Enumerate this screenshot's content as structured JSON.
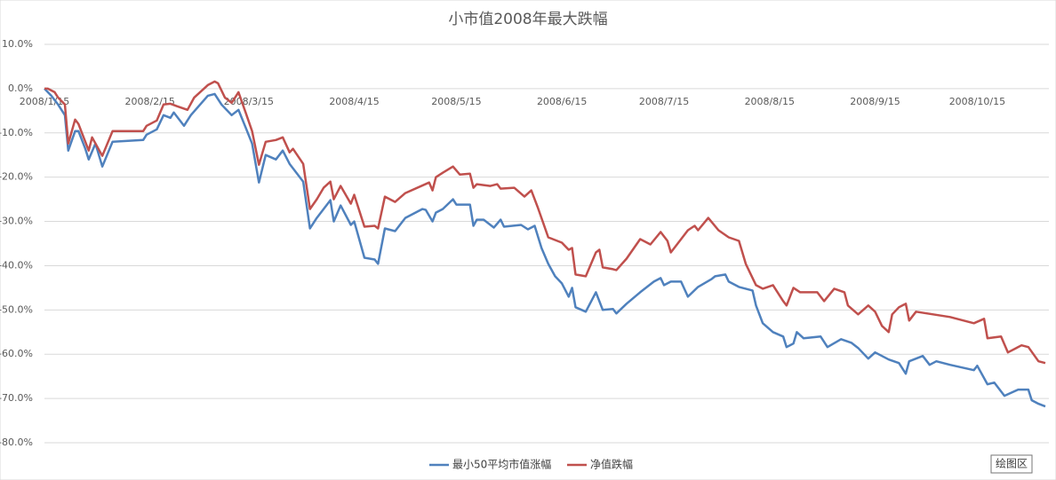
{
  "chart_data": {
    "type": "line",
    "title": "小市值2008年最大跌幅",
    "xlim": [
      "2008/1/15",
      "2008/11/4"
    ],
    "xticks": [
      "2008/1/15",
      "2008/2/15",
      "2008/3/15",
      "2008/4/15",
      "2008/5/15",
      "2008/6/15",
      "2008/7/15",
      "2008/8/15",
      "2008/9/15",
      "2008/10/15"
    ],
    "ylim": [
      -80,
      10
    ],
    "yticks": [
      {
        "value": 10,
        "label": "10.0%"
      },
      {
        "value": 0,
        "label": "0.0%"
      },
      {
        "value": -10,
        "label": "-10.0%"
      },
      {
        "value": -20,
        "label": "-20.0%"
      },
      {
        "value": -30,
        "label": "-30.0%"
      },
      {
        "value": -40,
        "label": "-40.0%"
      },
      {
        "value": -50,
        "label": "-50.0%"
      },
      {
        "value": -60,
        "label": "-60.0%"
      },
      {
        "value": -70,
        "label": "-70.0%"
      },
      {
        "value": -80,
        "label": "-80.0%"
      }
    ],
    "grid": true,
    "legend": "bottom",
    "series": [
      {
        "name": "最小50平均市值涨幅",
        "color": "#4f81bd",
        "x": [
          "2008/1/15",
          "2008/1/17",
          "2008/1/19",
          "2008/1/21",
          "2008/1/22",
          "2008/1/24",
          "2008/1/25",
          "2008/1/27",
          "2008/1/28",
          "2008/1/30",
          "2008/2/1",
          "2008/2/4",
          "2008/2/13",
          "2008/2/14",
          "2008/2/17",
          "2008/2/19",
          "2008/2/21",
          "2008/2/22",
          "2008/2/25",
          "2008/2/27",
          "2008/3/3",
          "2008/3/5",
          "2008/3/7",
          "2008/3/10",
          "2008/3/12",
          "2008/3/14",
          "2008/3/16",
          "2008/3/18",
          "2008/3/20",
          "2008/3/23",
          "2008/3/25",
          "2008/3/27",
          "2008/3/31",
          "2008/4/2",
          "2008/4/4",
          "2008/4/8",
          "2008/4/9",
          "2008/4/11",
          "2008/4/14",
          "2008/4/15",
          "2008/4/18",
          "2008/4/21",
          "2008/4/22",
          "2008/4/24",
          "2008/4/27",
          "2008/4/30",
          "2008/5/5",
          "2008/5/6",
          "2008/5/8",
          "2008/5/9",
          "2008/5/11",
          "2008/5/14",
          "2008/5/15",
          "2008/5/19",
          "2008/5/20",
          "2008/5/21",
          "2008/5/23",
          "2008/5/26",
          "2008/5/28",
          "2008/5/29",
          "2008/6/3",
          "2008/6/5",
          "2008/6/7",
          "2008/6/9",
          "2008/6/11",
          "2008/6/13",
          "2008/6/15",
          "2008/6/17",
          "2008/6/18",
          "2008/6/19",
          "2008/6/22",
          "2008/6/25",
          "2008/6/27",
          "2008/6/30",
          "2008/7/1",
          "2008/7/4",
          "2008/7/8",
          "2008/7/12",
          "2008/7/14",
          "2008/7/15",
          "2008/7/17",
          "2008/7/20",
          "2008/7/22",
          "2008/7/25",
          "2008/7/29",
          "2008/7/30",
          "2008/8/2",
          "2008/8/3",
          "2008/8/6",
          "2008/8/10",
          "2008/8/11",
          "2008/8/13",
          "2008/8/16",
          "2008/8/19",
          "2008/8/20",
          "2008/8/22",
          "2008/8/23",
          "2008/8/25",
          "2008/8/30",
          "2008/9/1",
          "2008/9/5",
          "2008/9/8",
          "2008/9/10",
          "2008/9/13",
          "2008/9/15",
          "2008/9/19",
          "2008/9/22",
          "2008/9/24",
          "2008/9/25",
          "2008/9/29",
          "2008/10/1",
          "2008/10/3",
          "2008/10/7",
          "2008/10/14",
          "2008/10/15",
          "2008/10/18",
          "2008/10/20",
          "2008/10/23",
          "2008/10/27",
          "2008/10/30",
          "2008/10/31",
          "2008/11/2",
          "2008/11/4"
        ],
        "values": [
          0,
          -1.6,
          -3.6,
          -6,
          -14,
          -9.6,
          -9.6,
          -13.6,
          -16,
          -12.4,
          -17.6,
          -12,
          -11.6,
          -10.4,
          -9.2,
          -6,
          -6.6,
          -5.4,
          -8.4,
          -6,
          -1.6,
          -1.2,
          -3.6,
          -6,
          -4.8,
          -8.6,
          -12.4,
          -21.2,
          -15,
          -16,
          -14,
          -17,
          -21,
          -31.6,
          -29.2,
          -25.2,
          -30,
          -26.4,
          -30.8,
          -30,
          -38.2,
          -38.6,
          -39.6,
          -31.6,
          -32.2,
          -29.2,
          -27.2,
          -27.4,
          -30,
          -28,
          -27.2,
          -25,
          -26.2,
          -26.2,
          -31,
          -29.6,
          -29.6,
          -31.4,
          -29.6,
          -31.2,
          -30.8,
          -31.8,
          -31,
          -36,
          -39.6,
          -42.4,
          -44,
          -47,
          -45,
          -49.4,
          -50.4,
          -46,
          -50,
          -49.8,
          -50.8,
          -48.6,
          -46,
          -43.6,
          -42.8,
          -44.4,
          -43.6,
          -43.6,
          -47,
          -44.8,
          -43,
          -42.4,
          -42,
          -43.6,
          -44.8,
          -45.6,
          -49,
          -53,
          -55,
          -56,
          -58.4,
          -57.6,
          -55,
          -56.4,
          -56,
          -58.4,
          -56.6,
          -57.4,
          -58.6,
          -61,
          -59.6,
          -61.2,
          -62,
          -64.4,
          -61.6,
          -60.4,
          -62.4,
          -61.6,
          -62.4,
          -63.6,
          -62.6,
          -66.8,
          -66.4,
          -69.4,
          -68,
          -68,
          -70.4,
          -71.2,
          -71.8
        ]
      },
      {
        "name": "净值跌幅",
        "color": "#c0504d",
        "x": [
          "2008/1/15",
          "2008/1/16",
          "2008/1/18",
          "2008/1/19",
          "2008/1/21",
          "2008/1/22",
          "2008/1/24",
          "2008/1/25",
          "2008/1/28",
          "2008/1/29",
          "2008/2/1",
          "2008/2/4",
          "2008/2/13",
          "2008/2/14",
          "2008/2/17",
          "2008/2/19",
          "2008/2/21",
          "2008/2/23",
          "2008/2/26",
          "2008/2/28",
          "2008/3/3",
          "2008/3/5",
          "2008/3/6",
          "2008/3/8",
          "2008/3/10",
          "2008/3/12",
          "2008/3/14",
          "2008/3/16",
          "2008/3/18",
          "2008/3/20",
          "2008/3/23",
          "2008/3/25",
          "2008/3/27",
          "2008/3/28",
          "2008/3/31",
          "2008/4/2",
          "2008/4/4",
          "2008/4/6",
          "2008/4/8",
          "2008/4/9",
          "2008/4/11",
          "2008/4/14",
          "2008/4/15",
          "2008/4/18",
          "2008/4/21",
          "2008/4/22",
          "2008/4/24",
          "2008/4/27",
          "2008/4/30",
          "2008/5/7",
          "2008/5/8",
          "2008/5/9",
          "2008/5/11",
          "2008/5/14",
          "2008/5/16",
          "2008/5/19",
          "2008/5/20",
          "2008/5/21",
          "2008/5/25",
          "2008/5/27",
          "2008/5/28",
          "2008/6/1",
          "2008/6/4",
          "2008/6/6",
          "2008/6/8",
          "2008/6/11",
          "2008/6/15",
          "2008/6/17",
          "2008/6/18",
          "2008/6/19",
          "2008/6/22",
          "2008/6/25",
          "2008/6/26",
          "2008/6/27",
          "2008/6/30",
          "2008/7/1",
          "2008/7/4",
          "2008/7/8",
          "2008/7/11",
          "2008/7/14",
          "2008/7/16",
          "2008/7/17",
          "2008/7/19",
          "2008/7/22",
          "2008/7/24",
          "2008/7/25",
          "2008/7/28",
          "2008/7/31",
          "2008/8/3",
          "2008/8/6",
          "2008/8/8",
          "2008/8/11",
          "2008/8/13",
          "2008/8/16",
          "2008/8/19",
          "2008/8/20",
          "2008/8/22",
          "2008/8/24",
          "2008/8/29",
          "2008/8/31",
          "2008/9/3",
          "2008/9/6",
          "2008/9/7",
          "2008/9/10",
          "2008/9/13",
          "2008/9/15",
          "2008/9/17",
          "2008/9/19",
          "2008/9/20",
          "2008/9/22",
          "2008/9/24",
          "2008/9/25",
          "2008/9/27",
          "2008/10/7",
          "2008/10/11",
          "2008/10/14",
          "2008/10/17",
          "2008/10/18",
          "2008/10/22",
          "2008/10/24",
          "2008/10/28",
          "2008/10/30",
          "2008/11/2",
          "2008/11/4"
        ],
        "values": [
          0,
          0,
          -0.8,
          -2,
          -3.6,
          -12.4,
          -7,
          -8,
          -14,
          -11,
          -15.2,
          -9.6,
          -9.6,
          -8.4,
          -7.2,
          -3.6,
          -3.4,
          -4,
          -4.8,
          -2,
          0.8,
          1.6,
          1.2,
          -2,
          -3.2,
          -0.8,
          -5.2,
          -9.6,
          -17.2,
          -12,
          -11.6,
          -11,
          -14.4,
          -13.6,
          -17,
          -27.2,
          -25,
          -22.4,
          -21,
          -25,
          -22,
          -26,
          -24,
          -31.2,
          -31,
          -31.6,
          -24.4,
          -25.6,
          -23.6,
          -21.2,
          -23,
          -20,
          -19,
          -17.6,
          -19.4,
          -19.2,
          -22.4,
          -21.6,
          -22,
          -21.6,
          -22.6,
          -22.4,
          -24.4,
          -23,
          -27,
          -33.6,
          -34.8,
          -36.4,
          -36,
          -42,
          -42.4,
          -37,
          -36.4,
          -40.4,
          -40.8,
          -41,
          -38.4,
          -34,
          -35.2,
          -32.4,
          -34.4,
          -37,
          -35,
          -32,
          -31,
          -32,
          -29.2,
          -32,
          -33.6,
          -34.4,
          -39.6,
          -44.4,
          -45.2,
          -44.4,
          -48,
          -49,
          -45,
          -46,
          -46,
          -48,
          -45.2,
          -46,
          -49,
          -51,
          -49,
          -50.4,
          -53.6,
          -55,
          -51,
          -49.4,
          -48.6,
          -52.4,
          -50.4,
          -51.6,
          -52.4,
          -53,
          -52,
          -56.4,
          -56,
          -59.6,
          -58,
          -58.4,
          -61.6,
          -62
        ]
      }
    ]
  },
  "tooltip": "绘图区"
}
